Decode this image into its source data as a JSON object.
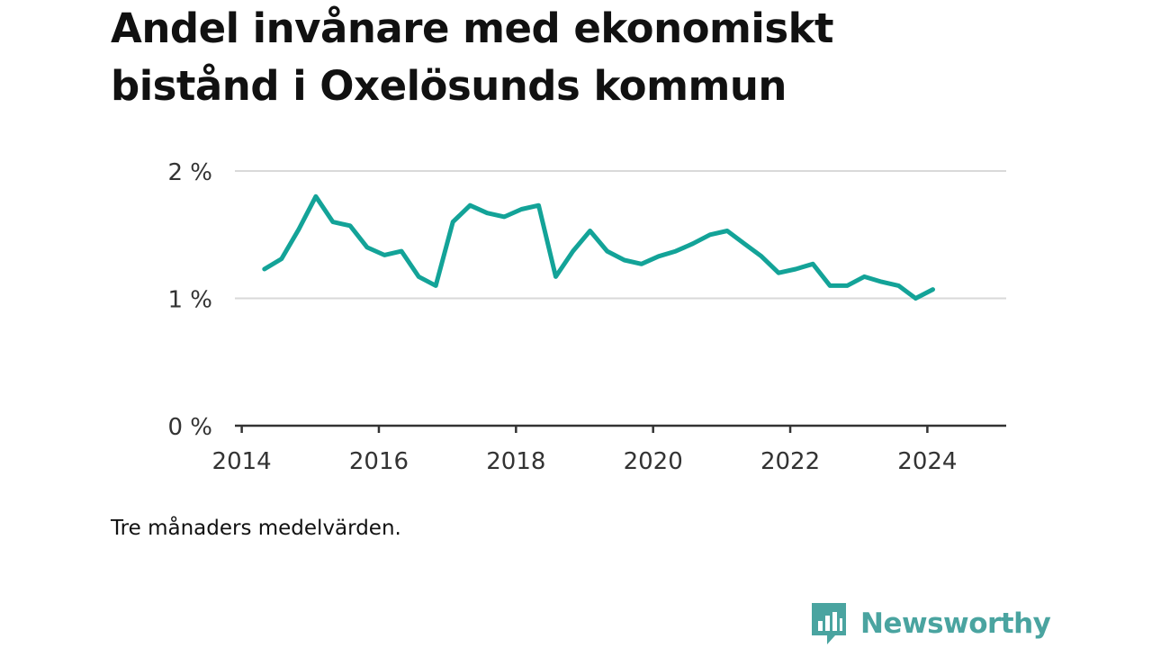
{
  "title": "Andel invånare med ekonomiskt bistånd i Oxelösunds kommun",
  "note": "Tre månaders medelvärden.",
  "brand": {
    "name": "Newsworthy",
    "icon": "bar-chart-speech-bubble-icon",
    "color": "#4aa4a0"
  },
  "chart_data": {
    "type": "line",
    "title": "Andel invånare med ekonomiskt bistånd i Oxelösunds kommun",
    "xlabel": "",
    "ylabel": "",
    "xlim": [
      2013.9,
      2025.15
    ],
    "ylim": [
      0,
      2
    ],
    "x_ticks": [
      {
        "value": 2014,
        "label": "2014"
      },
      {
        "value": 2016,
        "label": "2016"
      },
      {
        "value": 2018,
        "label": "2018"
      },
      {
        "value": 2020,
        "label": "2020"
      },
      {
        "value": 2022,
        "label": "2022"
      },
      {
        "value": 2024,
        "label": "2024"
      }
    ],
    "y_ticks": [
      {
        "value": 0,
        "label": "0 %"
      },
      {
        "value": 1,
        "label": "1 %"
      },
      {
        "value": 2,
        "label": "2 %"
      }
    ],
    "grid": true,
    "line_color": "#13a398",
    "series": [
      {
        "name": "",
        "points": [
          [
            2014.33,
            1.23
          ],
          [
            2014.58,
            1.31
          ],
          [
            2014.83,
            1.54
          ],
          [
            2015.08,
            1.8
          ],
          [
            2015.33,
            1.6
          ],
          [
            2015.58,
            1.57
          ],
          [
            2015.83,
            1.4
          ],
          [
            2016.08,
            1.34
          ],
          [
            2016.33,
            1.37
          ],
          [
            2016.58,
            1.17
          ],
          [
            2016.83,
            1.1
          ],
          [
            2017.08,
            1.6
          ],
          [
            2017.33,
            1.73
          ],
          [
            2017.58,
            1.67
          ],
          [
            2017.83,
            1.64
          ],
          [
            2018.08,
            1.7
          ],
          [
            2018.33,
            1.73
          ],
          [
            2018.58,
            1.17
          ],
          [
            2018.83,
            1.37
          ],
          [
            2019.08,
            1.53
          ],
          [
            2019.33,
            1.37
          ],
          [
            2019.58,
            1.3
          ],
          [
            2019.83,
            1.27
          ],
          [
            2020.08,
            1.33
          ],
          [
            2020.33,
            1.37
          ],
          [
            2020.58,
            1.43
          ],
          [
            2020.83,
            1.5
          ],
          [
            2021.08,
            1.53
          ],
          [
            2021.33,
            1.43
          ],
          [
            2021.58,
            1.33
          ],
          [
            2021.83,
            1.2
          ],
          [
            2022.08,
            1.23
          ],
          [
            2022.33,
            1.27
          ],
          [
            2022.58,
            1.1
          ],
          [
            2022.83,
            1.1
          ],
          [
            2023.08,
            1.17
          ],
          [
            2023.33,
            1.13
          ],
          [
            2023.58,
            1.1
          ],
          [
            2023.83,
            1.0
          ],
          [
            2024.08,
            1.07
          ]
        ]
      }
    ]
  }
}
